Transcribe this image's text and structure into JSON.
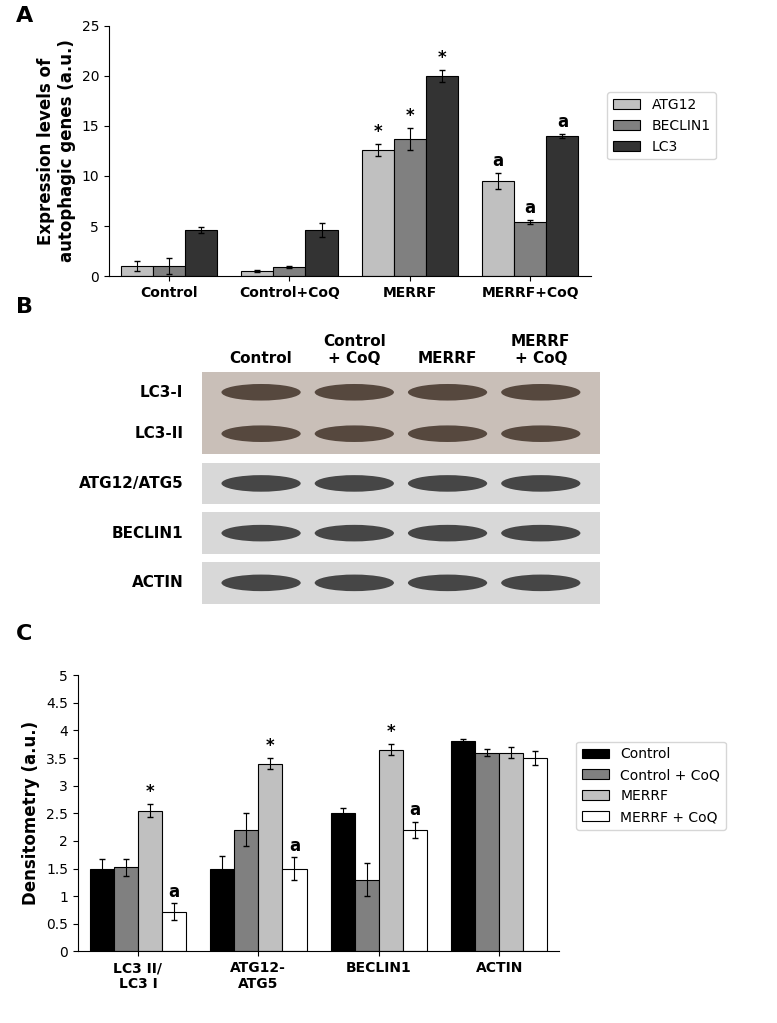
{
  "panel_labels": [
    "A",
    "B",
    "C"
  ],
  "chart_data": [
    {
      "type": "bar",
      "y_label": "Expression levels of\nautophagic genes (a.u.)",
      "categories": [
        "Control",
        "Control+CoQ",
        "MERRF",
        "MERRF+CoQ"
      ],
      "series": [
        {
          "name": "ATG12",
          "color": "#c0c0c0",
          "values": [
            1.0,
            0.5,
            12.6,
            9.5
          ],
          "errors": [
            0.5,
            0.1,
            0.6,
            0.8
          ],
          "annotations": [
            null,
            null,
            "*",
            "a"
          ]
        },
        {
          "name": "BECLIN1",
          "color": "#808080",
          "values": [
            1.0,
            0.9,
            13.7,
            5.4
          ],
          "errors": [
            0.8,
            0.1,
            1.1,
            0.2
          ],
          "annotations": [
            null,
            null,
            "*",
            "a"
          ]
        },
        {
          "name": "LC3",
          "color": "#333333",
          "values": [
            4.6,
            4.6,
            20.0,
            14.0
          ],
          "errors": [
            0.3,
            0.7,
            0.6,
            0.2
          ],
          "annotations": [
            null,
            null,
            "*",
            "a"
          ]
        }
      ],
      "ylim": [
        0,
        25
      ],
      "yticks": [
        0,
        5,
        10,
        15,
        20,
        25
      ],
      "legend": "right"
    },
    {
      "type": "bar",
      "y_label": "Densitometry (a.u.)",
      "categories": [
        "LC3 II/\nLC3 I",
        "ATG12-\nATG5",
        "BECLIN1",
        "ACTIN"
      ],
      "series": [
        {
          "name": "Control",
          "color": "#000000",
          "values": [
            1.5,
            1.5,
            2.5,
            3.8
          ],
          "errors": [
            0.17,
            0.22,
            0.1,
            0.05
          ],
          "annotations": [
            null,
            null,
            null,
            null
          ]
        },
        {
          "name": "Control + CoQ",
          "color": "#808080",
          "values": [
            1.52,
            2.2,
            1.3,
            3.6
          ],
          "errors": [
            0.15,
            0.3,
            0.3,
            0.07
          ],
          "annotations": [
            null,
            null,
            null,
            null
          ]
        },
        {
          "name": "MERRF",
          "color": "#c0c0c0",
          "values": [
            2.55,
            3.4,
            3.65,
            3.6
          ],
          "errors": [
            0.12,
            0.1,
            0.1,
            0.1
          ],
          "annotations": [
            "*",
            "*",
            "*",
            null
          ]
        },
        {
          "name": "MERRF + CoQ",
          "color": "#ffffff",
          "values": [
            0.72,
            1.5,
            2.2,
            3.5
          ],
          "errors": [
            0.15,
            0.2,
            0.15,
            0.12
          ],
          "annotations": [
            "a",
            "a",
            "a",
            null
          ]
        }
      ],
      "ylim": [
        0,
        5
      ],
      "yticks": [
        0,
        0.5,
        1,
        1.5,
        2,
        2.5,
        3,
        3.5,
        4,
        4.5,
        5
      ],
      "legend": "right"
    }
  ],
  "blot": {
    "columns": [
      "Control",
      "Control\n+ CoQ",
      "MERRF",
      "MERRF\n+ CoQ"
    ],
    "panels": [
      {
        "rows": [
          "LC3-I",
          "LC3-II"
        ]
      },
      {
        "rows": [
          "ATG12/ATG5"
        ]
      },
      {
        "rows": [
          "BECLIN1"
        ]
      },
      {
        "rows": [
          "ACTIN"
        ]
      }
    ]
  }
}
